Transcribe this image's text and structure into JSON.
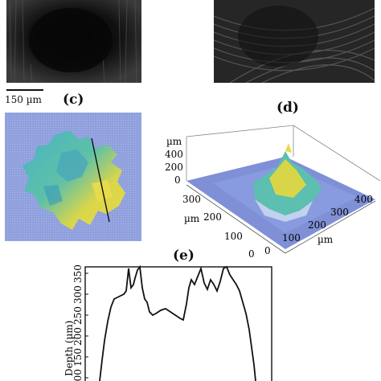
{
  "panels": {
    "c": {
      "label": "(c)"
    },
    "d": {
      "label": "(d)"
    },
    "e": {
      "label": "(e)"
    }
  },
  "scale_bar": {
    "text": "150 µm"
  },
  "surface_3d": {
    "z_unit": "µm",
    "z_ticks": [
      "400",
      "200",
      "0"
    ],
    "left_axis_ticks": [
      "300",
      "200",
      "100",
      "0"
    ],
    "left_axis_unit": "µm",
    "right_axis_ticks": [
      "0",
      "100",
      "200",
      "300",
      "400"
    ],
    "right_axis_unit": "µm"
  },
  "profile": {
    "ylabel": "Depth (µm)",
    "y_ticks": [
      "350",
      "300",
      "250",
      "200",
      "150",
      "100"
    ]
  },
  "colors": {
    "map_background": "#8fa0dc",
    "map_yellow": "#e8d84a",
    "map_teal": "#3aa7b5"
  }
}
